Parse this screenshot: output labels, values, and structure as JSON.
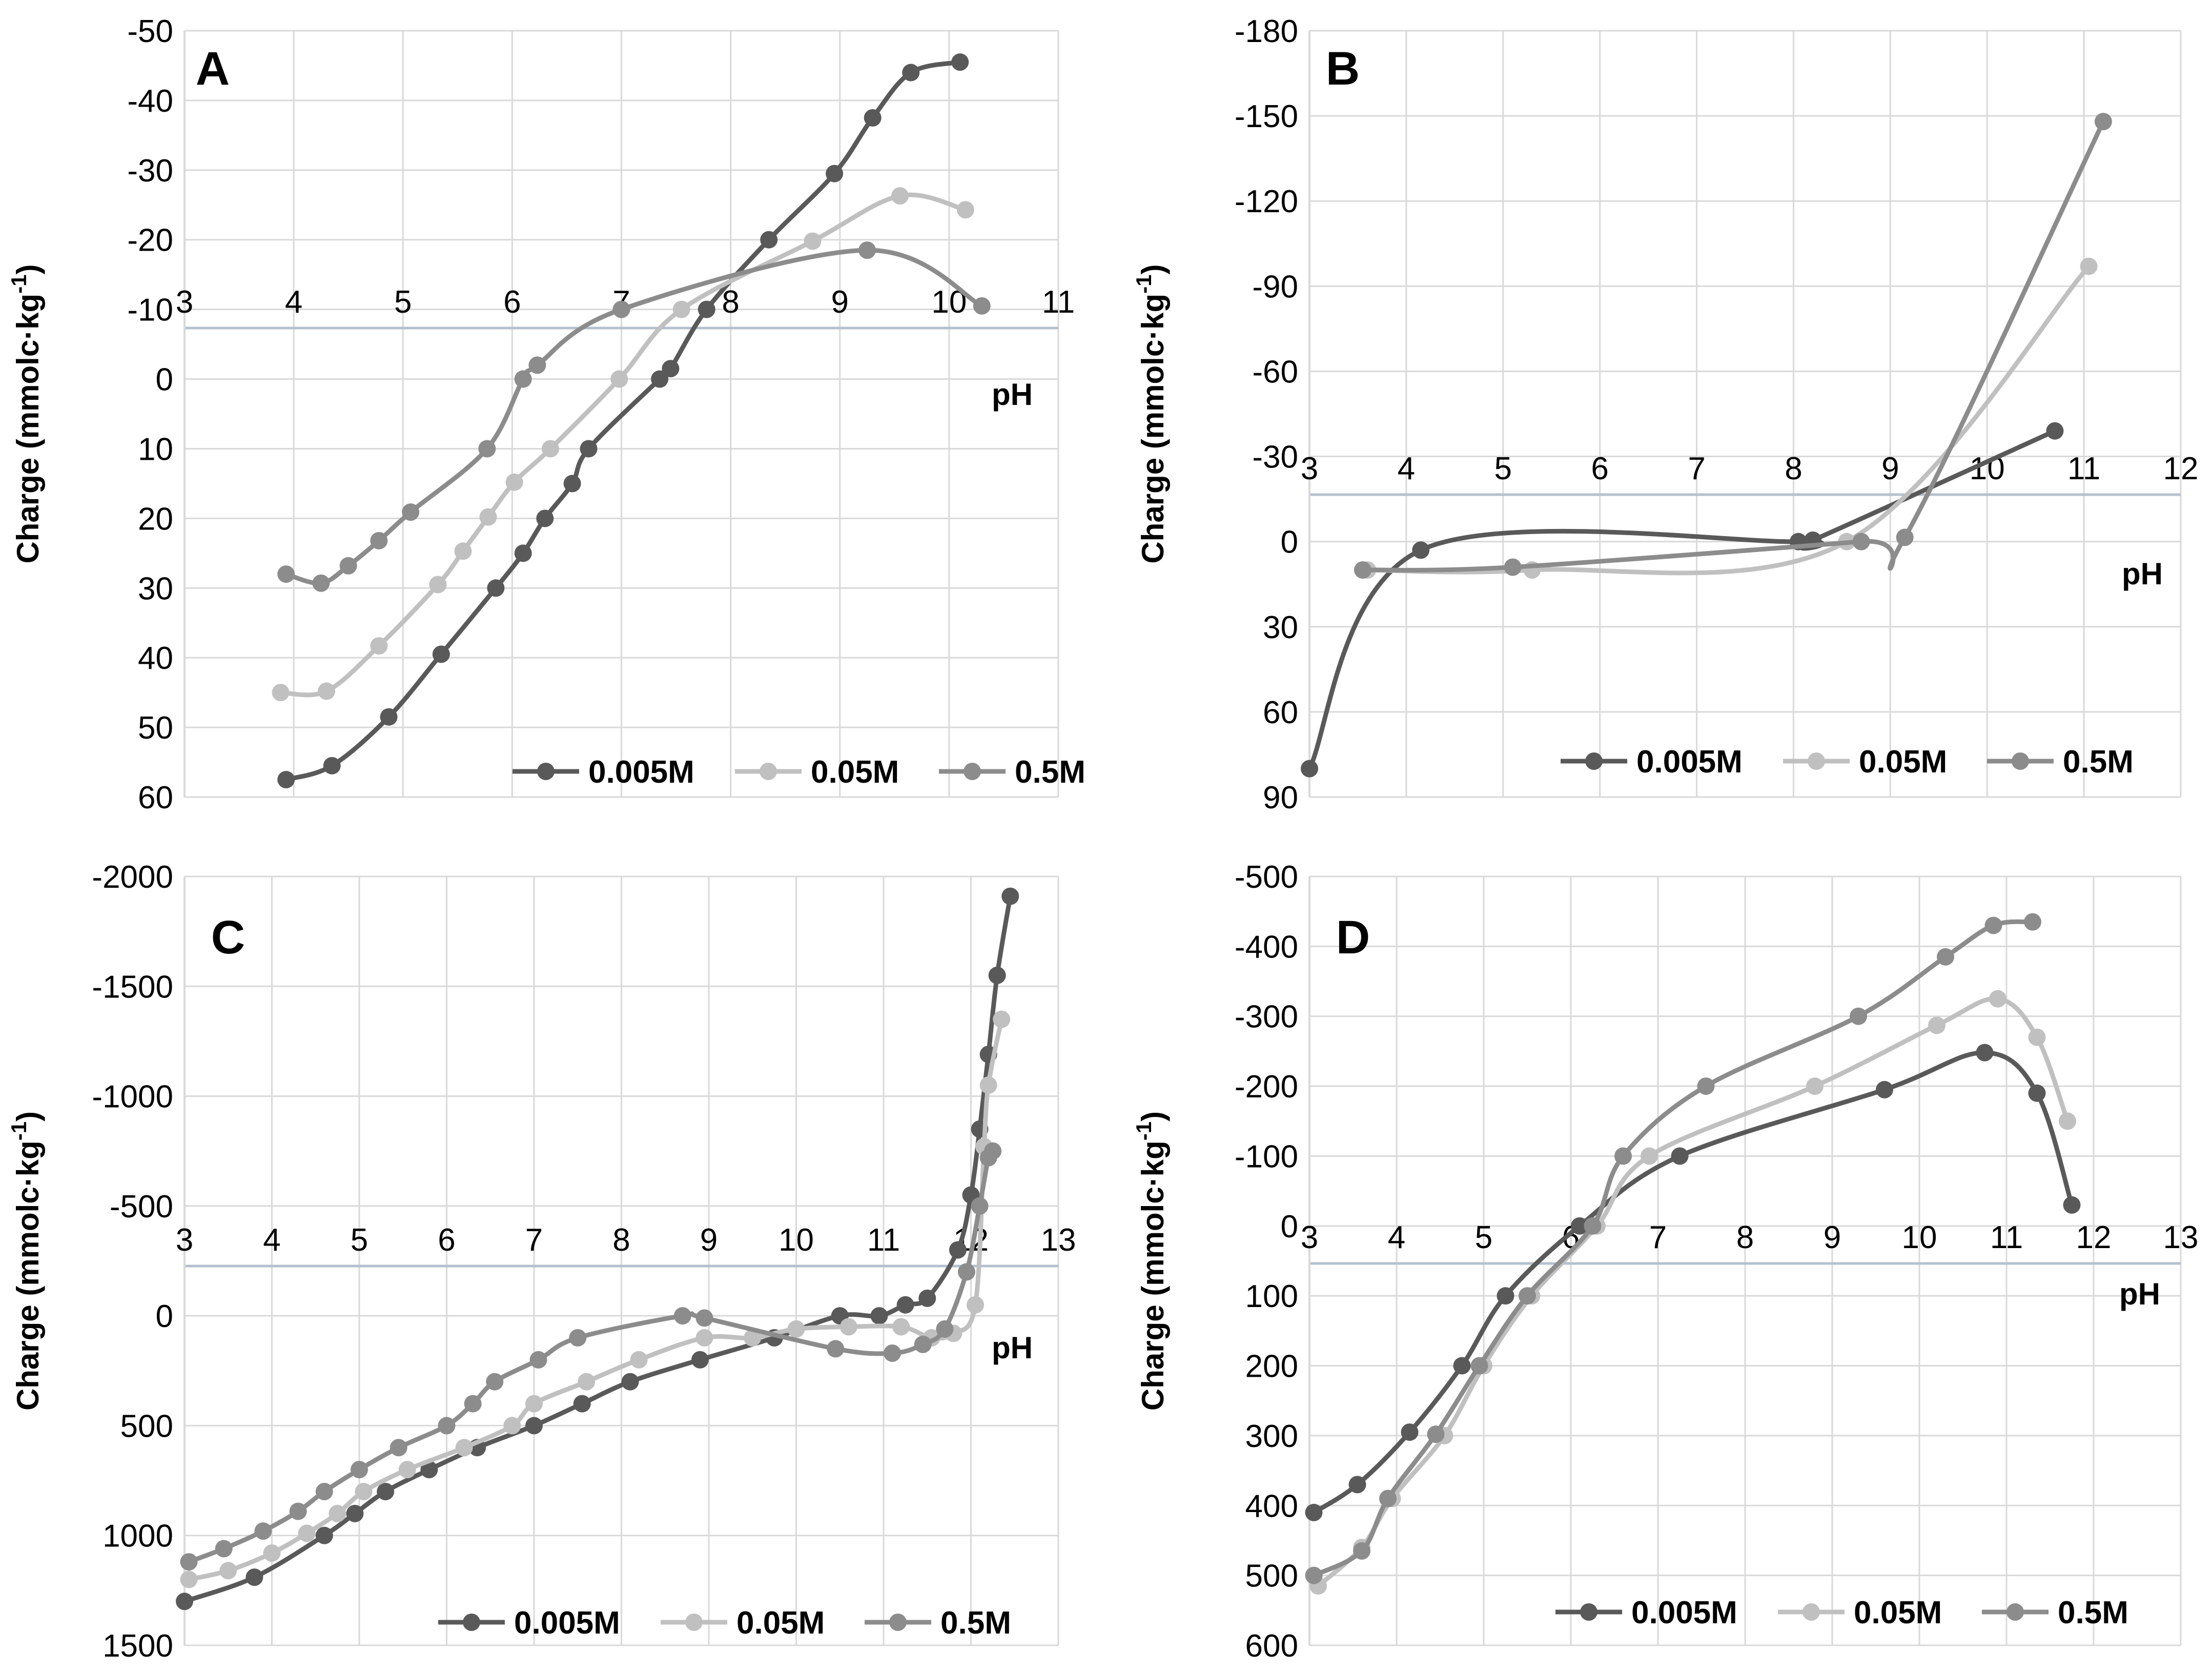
{
  "colors": {
    "series_0005": "#595959",
    "series_005": "#c0c0c0",
    "series_05": "#8c8c8c",
    "gridline": "#d9d9d9",
    "zero_line": "#b4c0ce",
    "text": "#000000"
  },
  "chart_data": [
    {
      "id": "A",
      "type": "line",
      "panel_label": "A",
      "xlabel": "pH",
      "ylabel": "Charge (mmolc·kg",
      "ylabel_sup": "-1",
      "ylabel_end": ")",
      "xlim": [
        3,
        11
      ],
      "ylim": [
        -50,
        60
      ],
      "y_inverted": true,
      "x_ticks": [
        "3",
        "4",
        "5",
        "6",
        "7",
        "8",
        "9",
        "10",
        "11"
      ],
      "y_ticks": [
        "-50",
        "-40",
        "-30",
        "-20",
        "-10",
        "0",
        "10",
        "20",
        "30",
        "40",
        "50",
        "60"
      ],
      "legend": [
        "0.005M",
        "0.05M",
        "0.5M"
      ],
      "legend_position": "bottom-right",
      "series": [
        {
          "name": "0.005M",
          "x": [
            3.93,
            4.35,
            4.87,
            5.35,
            5.85,
            6.1,
            6.3,
            6.55,
            6.7,
            7.35,
            7.45,
            7.78,
            8.35,
            8.95,
            9.3,
            9.65,
            10.1
          ],
          "y": [
            57.5,
            55.5,
            48.5,
            39.5,
            30,
            25,
            20,
            15,
            10,
            0,
            -1.5,
            -10,
            -20,
            -29.5,
            -37.5,
            -44,
            -45.5
          ]
        },
        {
          "name": "0.05M",
          "x": [
            3.88,
            4.3,
            4.78,
            5.32,
            5.55,
            5.78,
            6.02,
            6.35,
            6.98,
            7.55,
            8.75,
            9.55,
            10.15
          ],
          "y": [
            45,
            44.8,
            38.3,
            29.5,
            24.7,
            19.8,
            14.8,
            10,
            0,
            -10,
            -19.8,
            -26.3,
            -24.3
          ]
        },
        {
          "name": "0.5M",
          "x": [
            3.93,
            4.25,
            4.5,
            4.78,
            5.07,
            5.77,
            6.1,
            6.23,
            7.0,
            9.25,
            10.3
          ],
          "y": [
            28,
            29.3,
            26.8,
            23.2,
            19.1,
            10,
            0,
            -2,
            -10,
            -18.5,
            -10.5
          ]
        }
      ]
    },
    {
      "id": "B",
      "type": "line",
      "panel_label": "B",
      "xlabel": "pH",
      "ylabel": "Charge (mmolc·kg",
      "ylabel_sup": "-1",
      "ylabel_end": ")",
      "xlim": [
        3,
        12
      ],
      "ylim": [
        -180,
        90
      ],
      "y_inverted": true,
      "x_ticks": [
        "3",
        "4",
        "5",
        "6",
        "7",
        "8",
        "9",
        "10",
        "11",
        "12"
      ],
      "y_ticks": [
        "-180",
        "-150",
        "-120",
        "-90",
        "-60",
        "-30",
        "0",
        "30",
        "60",
        "90"
      ],
      "legend": [
        "0.005M",
        "0.05M",
        "0.5M"
      ],
      "legend_position": "bottom-right",
      "series": [
        {
          "name": "0.005M",
          "x": [
            3.0,
            4.15,
            8.05,
            8.2,
            10.7
          ],
          "y": [
            80,
            3,
            0,
            -0.5,
            -39
          ]
        },
        {
          "name": "0.05M",
          "x": [
            3.6,
            5.3,
            8.55,
            11.05
          ],
          "y": [
            10,
            10,
            0,
            -97
          ]
        },
        {
          "name": "0.5M",
          "x": [
            3.55,
            5.1,
            8.7,
            9.15,
            11.2
          ],
          "y": [
            10,
            9,
            0,
            -1.5,
            -148
          ]
        }
      ]
    },
    {
      "id": "C",
      "type": "line",
      "panel_label": "C",
      "xlabel": "pH",
      "ylabel": "Charge (mmolc·kg",
      "ylabel_sup": "-1",
      "ylabel_end": ")",
      "xlim": [
        3,
        13
      ],
      "ylim": [
        -2000,
        1500
      ],
      "y_inverted": true,
      "x_ticks": [
        "3",
        "4",
        "5",
        "6",
        "7",
        "8",
        "9",
        "10",
        "11",
        "12",
        "13"
      ],
      "y_ticks": [
        "-2000",
        "-1500",
        "-1000",
        "-500",
        "0",
        "500",
        "1000",
        "1500"
      ],
      "legend": [
        "0.005M",
        "0.05M",
        "0.5M"
      ],
      "legend_position": "bottom-right",
      "series": [
        {
          "name": "0.005M",
          "x": [
            3.0,
            3.8,
            4.6,
            4.95,
            5.3,
            5.8,
            6.35,
            7.0,
            7.55,
            8.1,
            8.9,
            9.75,
            10.5,
            10.95,
            11.25,
            11.5,
            11.85,
            12.0,
            12.1,
            12.2,
            12.3,
            12.45
          ],
          "y": [
            1300,
            1190,
            1000,
            900,
            800,
            700,
            600,
            500,
            400,
            300,
            200,
            100,
            0,
            0,
            -50,
            -80,
            -300,
            -550,
            -850,
            -1190,
            -1550,
            -1910
          ]
        },
        {
          "name": "0.05M",
          "x": [
            3.05,
            3.5,
            4.0,
            4.4,
            4.75,
            5.05,
            5.55,
            6.2,
            6.75,
            7.0,
            7.6,
            8.2,
            8.95,
            9.5,
            10.0,
            10.6,
            11.2,
            11.55,
            11.8,
            12.05,
            12.15,
            12.2,
            12.35
          ],
          "y": [
            1200,
            1160,
            1080,
            990,
            900,
            800,
            700,
            600,
            500,
            400,
            300,
            200,
            100,
            100,
            60,
            50,
            50,
            100,
            80,
            -50,
            -770,
            -1050,
            -1350
          ]
        },
        {
          "name": "0.5M",
          "x": [
            3.05,
            3.45,
            3.9,
            4.3,
            4.6,
            5.0,
            5.45,
            6.0,
            6.3,
            6.55,
            7.05,
            7.5,
            8.7,
            8.95,
            10.45,
            11.1,
            11.45,
            11.7,
            11.95,
            12.1,
            12.2,
            12.25
          ],
          "y": [
            1120,
            1060,
            980,
            890,
            800,
            700,
            600,
            500,
            400,
            300,
            200,
            100,
            0,
            10,
            150,
            170,
            130,
            60,
            -200,
            -500,
            -720,
            -750
          ]
        }
      ]
    },
    {
      "id": "D",
      "type": "line",
      "panel_label": "D",
      "xlabel": "pH",
      "ylabel": "Charge (mmolc·kg",
      "ylabel_sup": "-1",
      "ylabel_end": ")",
      "xlim": [
        3,
        13
      ],
      "ylim": [
        -500,
        600
      ],
      "y_inverted": true,
      "x_ticks": [
        "3",
        "4",
        "5",
        "6",
        "7",
        "8",
        "9",
        "10",
        "11",
        "12",
        "13"
      ],
      "y_ticks": [
        "-500",
        "-400",
        "-300",
        "-200",
        "-100",
        "0",
        "100",
        "200",
        "300",
        "400",
        "500",
        "600"
      ],
      "legend": [
        "0.005M",
        "0.05M",
        "0.5M"
      ],
      "legend_position": "bottom-right",
      "series": [
        {
          "name": "0.005M",
          "x": [
            3.05,
            3.55,
            4.15,
            4.75,
            5.25,
            6.1,
            7.25,
            9.6,
            10.75,
            11.35,
            11.75
          ],
          "y": [
            410,
            370,
            295,
            200,
            100,
            0,
            -100,
            -195,
            -248,
            -190,
            -30
          ]
        },
        {
          "name": "0.05M",
          "x": [
            3.1,
            3.6,
            3.95,
            4.55,
            5.0,
            5.55,
            6.3,
            6.9,
            8.8,
            10.2,
            10.9,
            11.35,
            11.7
          ],
          "y": [
            515,
            460,
            390,
            300,
            200,
            100,
            0,
            -100,
            -200,
            -287,
            -325,
            -270,
            -150
          ]
        },
        {
          "name": "0.5M",
          "x": [
            3.05,
            3.6,
            3.9,
            4.45,
            4.95,
            5.5,
            6.25,
            6.6,
            7.55,
            9.3,
            10.3,
            10.85,
            11.3
          ],
          "y": [
            500,
            465,
            390,
            298,
            200,
            100,
            0,
            -100,
            -200,
            -300,
            -385,
            -430,
            -435
          ]
        }
      ]
    }
  ]
}
